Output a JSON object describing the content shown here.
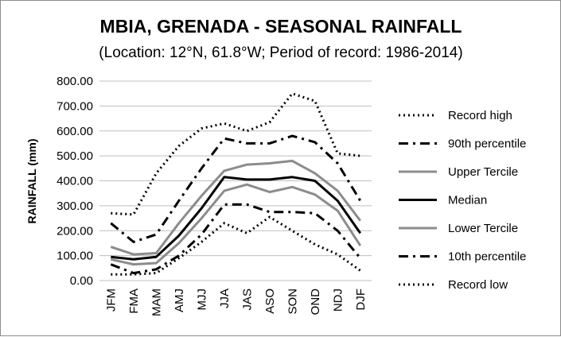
{
  "chart_data": {
    "type": "line",
    "title": "MBIA, GRENADA - SEASONAL RAINFALL",
    "subtitle": "(Location: 12°N, 61.8°W; Period of record: 1986-2014)",
    "xlabel": "",
    "ylabel": "RAINFALL (mm)",
    "ylim": [
      0,
      800
    ],
    "yticks": [
      "0.00",
      "100.00",
      "200.00",
      "300.00",
      "400.00",
      "500.00",
      "600.00",
      "700.00",
      "800.00"
    ],
    "categories": [
      "JFM",
      "FMA",
      "MAM",
      "AMJ",
      "MJJ",
      "JJA",
      "JAS",
      "ASO",
      "SON",
      "OND",
      "NDJ",
      "DJF"
    ],
    "grid": "horizontal",
    "legend_position": "right",
    "series": [
      {
        "name": "Record high",
        "style": "dotted",
        "color": "#000000",
        "values": [
          270,
          265,
          430,
          540,
          610,
          630,
          600,
          635,
          750,
          720,
          510,
          500
        ]
      },
      {
        "name": "90th percentile",
        "style": "dashdot",
        "color": "#000000",
        "values": [
          230,
          155,
          185,
          320,
          450,
          570,
          550,
          550,
          580,
          555,
          470,
          320
        ]
      },
      {
        "name": "Upper Tercile",
        "style": "solid",
        "color": "#8c8c8c",
        "values": [
          135,
          105,
          110,
          230,
          340,
          440,
          465,
          470,
          480,
          430,
          360,
          240
        ]
      },
      {
        "name": "Median",
        "style": "solid",
        "color": "#000000",
        "values": [
          95,
          85,
          95,
          180,
          290,
          415,
          405,
          405,
          415,
          400,
          320,
          190
        ]
      },
      {
        "name": "Lower Tercile",
        "style": "solid",
        "color": "#8c8c8c",
        "values": [
          85,
          65,
          70,
          150,
          250,
          360,
          385,
          355,
          375,
          345,
          280,
          140
        ]
      },
      {
        "name": "10th percentile",
        "style": "dashdot",
        "color": "#000000",
        "values": [
          65,
          30,
          45,
          100,
          185,
          305,
          305,
          275,
          275,
          270,
          200,
          90
        ]
      },
      {
        "name": "Record low",
        "style": "dotted",
        "color": "#000000",
        "values": [
          25,
          25,
          30,
          90,
          155,
          230,
          190,
          255,
          200,
          145,
          105,
          40
        ]
      }
    ]
  }
}
